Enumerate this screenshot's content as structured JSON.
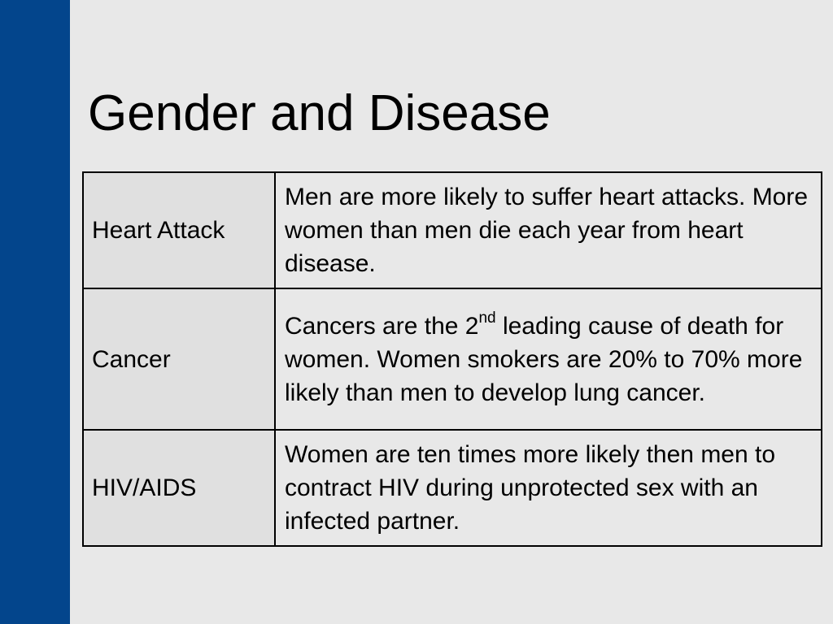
{
  "slide": {
    "title": "Gender and Disease",
    "accent_color": "#03458c",
    "background_color": "#e8e8e8"
  },
  "table": {
    "rows": [
      {
        "label": "Heart Attack",
        "text": "Men are more likely to suffer heart attacks. More women than men die each year from heart disease."
      },
      {
        "label": "Cancer",
        "text_before": "Cancers are the 2",
        "superscript": "nd",
        "text_after": " leading cause of death for women. Women smokers are 20% to 70% more likely than men to develop lung cancer."
      },
      {
        "label": "HIV/AIDS",
        "text": "Women are ten times more likely then men to contract HIV during unprotected sex with an infected partner."
      }
    ]
  }
}
